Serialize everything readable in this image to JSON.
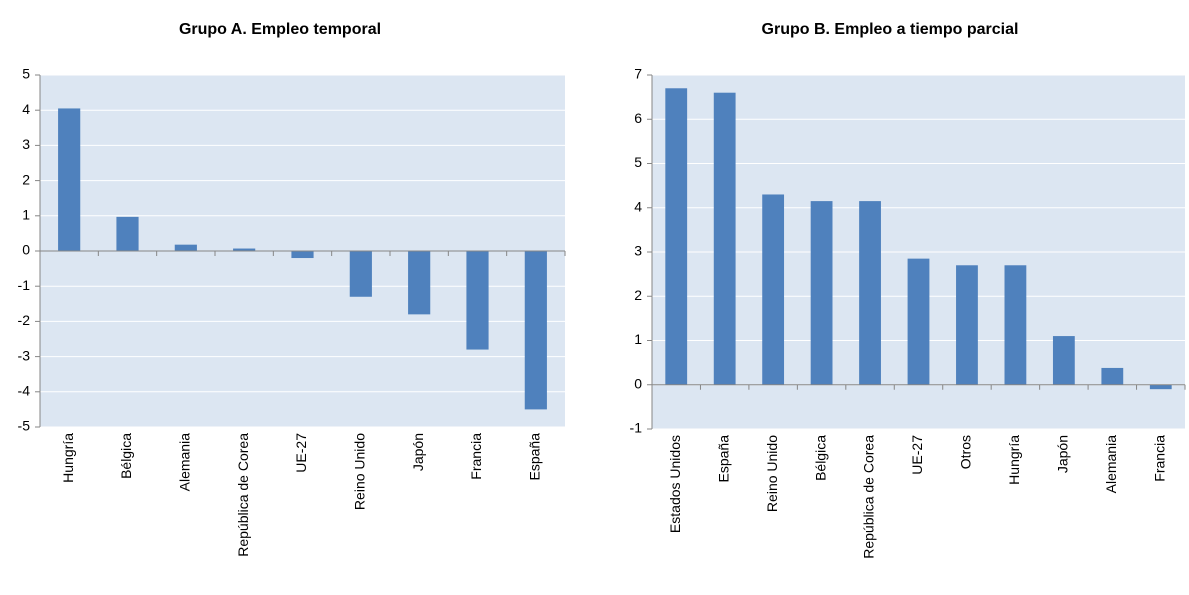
{
  "chart_data": [
    {
      "type": "bar",
      "title": "Grupo A. Empleo temporal",
      "categories": [
        "Hungría",
        "Bélgica",
        "Alemania",
        "República de Corea",
        "UE-27",
        "Reino Unido",
        "Japón",
        "Francia",
        "España"
      ],
      "values": [
        4.05,
        0.97,
        0.18,
        0.07,
        -0.2,
        -1.3,
        -1.8,
        -2.8,
        -4.5
      ],
      "color": "#4f81bd",
      "ylim": [
        -5,
        5
      ],
      "yticks": [
        -5,
        -4,
        -3,
        -2,
        -1,
        0,
        1,
        2,
        3,
        4,
        5
      ],
      "grid": true
    },
    {
      "type": "bar",
      "title": "Grupo B. Empleo a tiempo parcial",
      "categories": [
        "Estados Unidos",
        "España",
        "Reino Unido",
        "Bélgica",
        "República de Corea",
        "UE-27",
        "Otros",
        "Hungría",
        "Japón",
        "Alemania",
        "Francia"
      ],
      "values": [
        6.7,
        6.6,
        4.3,
        4.15,
        4.15,
        2.85,
        2.7,
        2.7,
        1.1,
        0.38,
        -0.1
      ],
      "color": "#4f81bd",
      "ylim": [
        -1,
        7
      ],
      "yticks": [
        -1,
        0,
        1,
        2,
        3,
        4,
        5,
        6,
        7
      ],
      "grid": true
    }
  ]
}
